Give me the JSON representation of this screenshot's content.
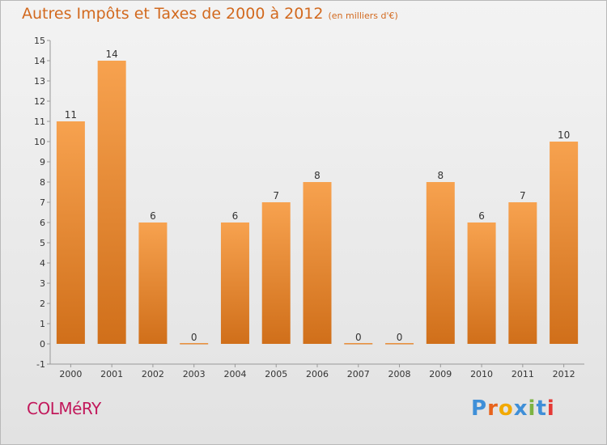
{
  "header": {
    "title": "Autres Impôts et Taxes de 2000 à 2012",
    "unit": "(en milliers d'€)"
  },
  "footer": {
    "commune": "COLMéRY",
    "logo_letters": [
      "P",
      "r",
      "o",
      "x",
      "i",
      "t",
      "i"
    ]
  },
  "colors": {
    "title": "#d2691e",
    "commune": "#c2185b",
    "bar_light": "#f7a24f",
    "bar_dark": "#d06f1a",
    "logo": [
      "#3f8fd8",
      "#e8631c",
      "#f2a900",
      "#3f8fd8",
      "#7cb342",
      "#3f8fd8",
      "#e53935"
    ]
  },
  "chart_data": {
    "type": "bar",
    "title": "Autres Impôts et Taxes de 2000 à 2012",
    "xlabel": "",
    "ylabel": "",
    "categories": [
      "2000",
      "2001",
      "2002",
      "2003",
      "2004",
      "2005",
      "2006",
      "2007",
      "2008",
      "2009",
      "2010",
      "2011",
      "2012"
    ],
    "values": [
      11,
      14,
      6,
      0,
      6,
      7,
      8,
      0,
      0,
      8,
      6,
      7,
      10
    ],
    "ylim": [
      -1,
      15
    ],
    "yticks": [
      "-1",
      "0",
      "1",
      "2",
      "3",
      "4",
      "5",
      "6",
      "7",
      "8",
      "9",
      "10",
      "11",
      "12",
      "13",
      "14",
      "15"
    ],
    "grid": false,
    "legend": "none"
  }
}
